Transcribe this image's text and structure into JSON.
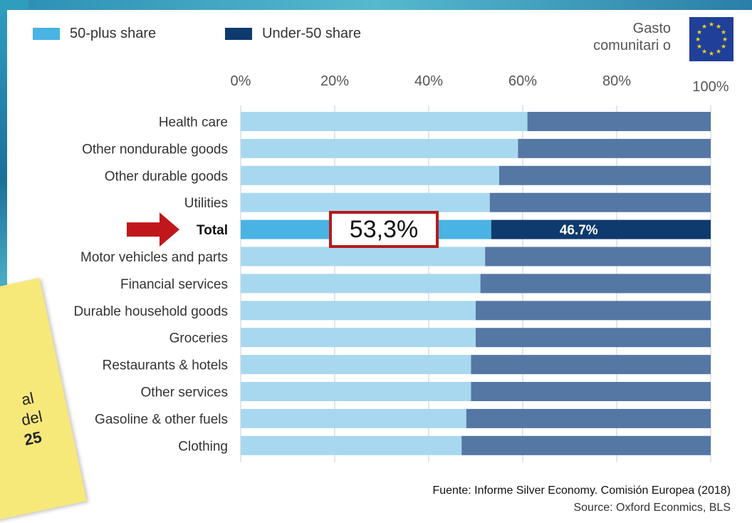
{
  "legend": {
    "items": [
      {
        "label": "50-plus share",
        "color": "#49b3e3"
      },
      {
        "label": "Under-50 share",
        "color": "#0f3a6e"
      }
    ]
  },
  "badge": {
    "text": "Gasto comunitari o",
    "icon": "eu-flag-icon"
  },
  "callout": {
    "text": "53,3%"
  },
  "sticky_note": {
    "lines": [
      "al",
      "del",
      "25"
    ]
  },
  "source": {
    "line1": "Fuente: Informe Silver Economy. Comisión Europea (2018)",
    "line2": "Source: Oxford Econmics, BLS"
  },
  "chart_data": {
    "type": "bar",
    "orientation": "horizontal",
    "stacked": true,
    "categories": [
      "Health care",
      "Other nondurable goods",
      "Other durable goods",
      "Utilities",
      "Total",
      "Motor vehicles and parts",
      "Financial services",
      "Durable household goods",
      "Groceries",
      "Restaurants & hotels",
      "Other services",
      "Gasoline & other fuels",
      "Clothing"
    ],
    "highlight_category": "Total",
    "series": [
      {
        "name": "50-plus share",
        "values": [
          61,
          59,
          55,
          53,
          53.3,
          52,
          51,
          50,
          50,
          49,
          49,
          48,
          47
        ],
        "color": "#a8d8ef",
        "highlight_color": "#49b3e3"
      },
      {
        "name": "Under-50 share",
        "values": [
          39,
          41,
          45,
          47,
          46.7,
          48,
          49,
          50,
          50,
          51,
          51,
          52,
          53
        ],
        "color": "#5577a4",
        "highlight_color": "#0f3a6e"
      }
    ],
    "data_labels": [
      {
        "category": "Total",
        "series": "Under-50 share",
        "text": "46.7%"
      }
    ],
    "xticks": [
      "0%",
      "20%",
      "40%",
      "60%",
      "80%",
      "100%"
    ],
    "xlim": [
      0,
      100
    ],
    "grid": true,
    "legend_position": "top-left",
    "title": "",
    "xlabel": "",
    "ylabel": ""
  }
}
